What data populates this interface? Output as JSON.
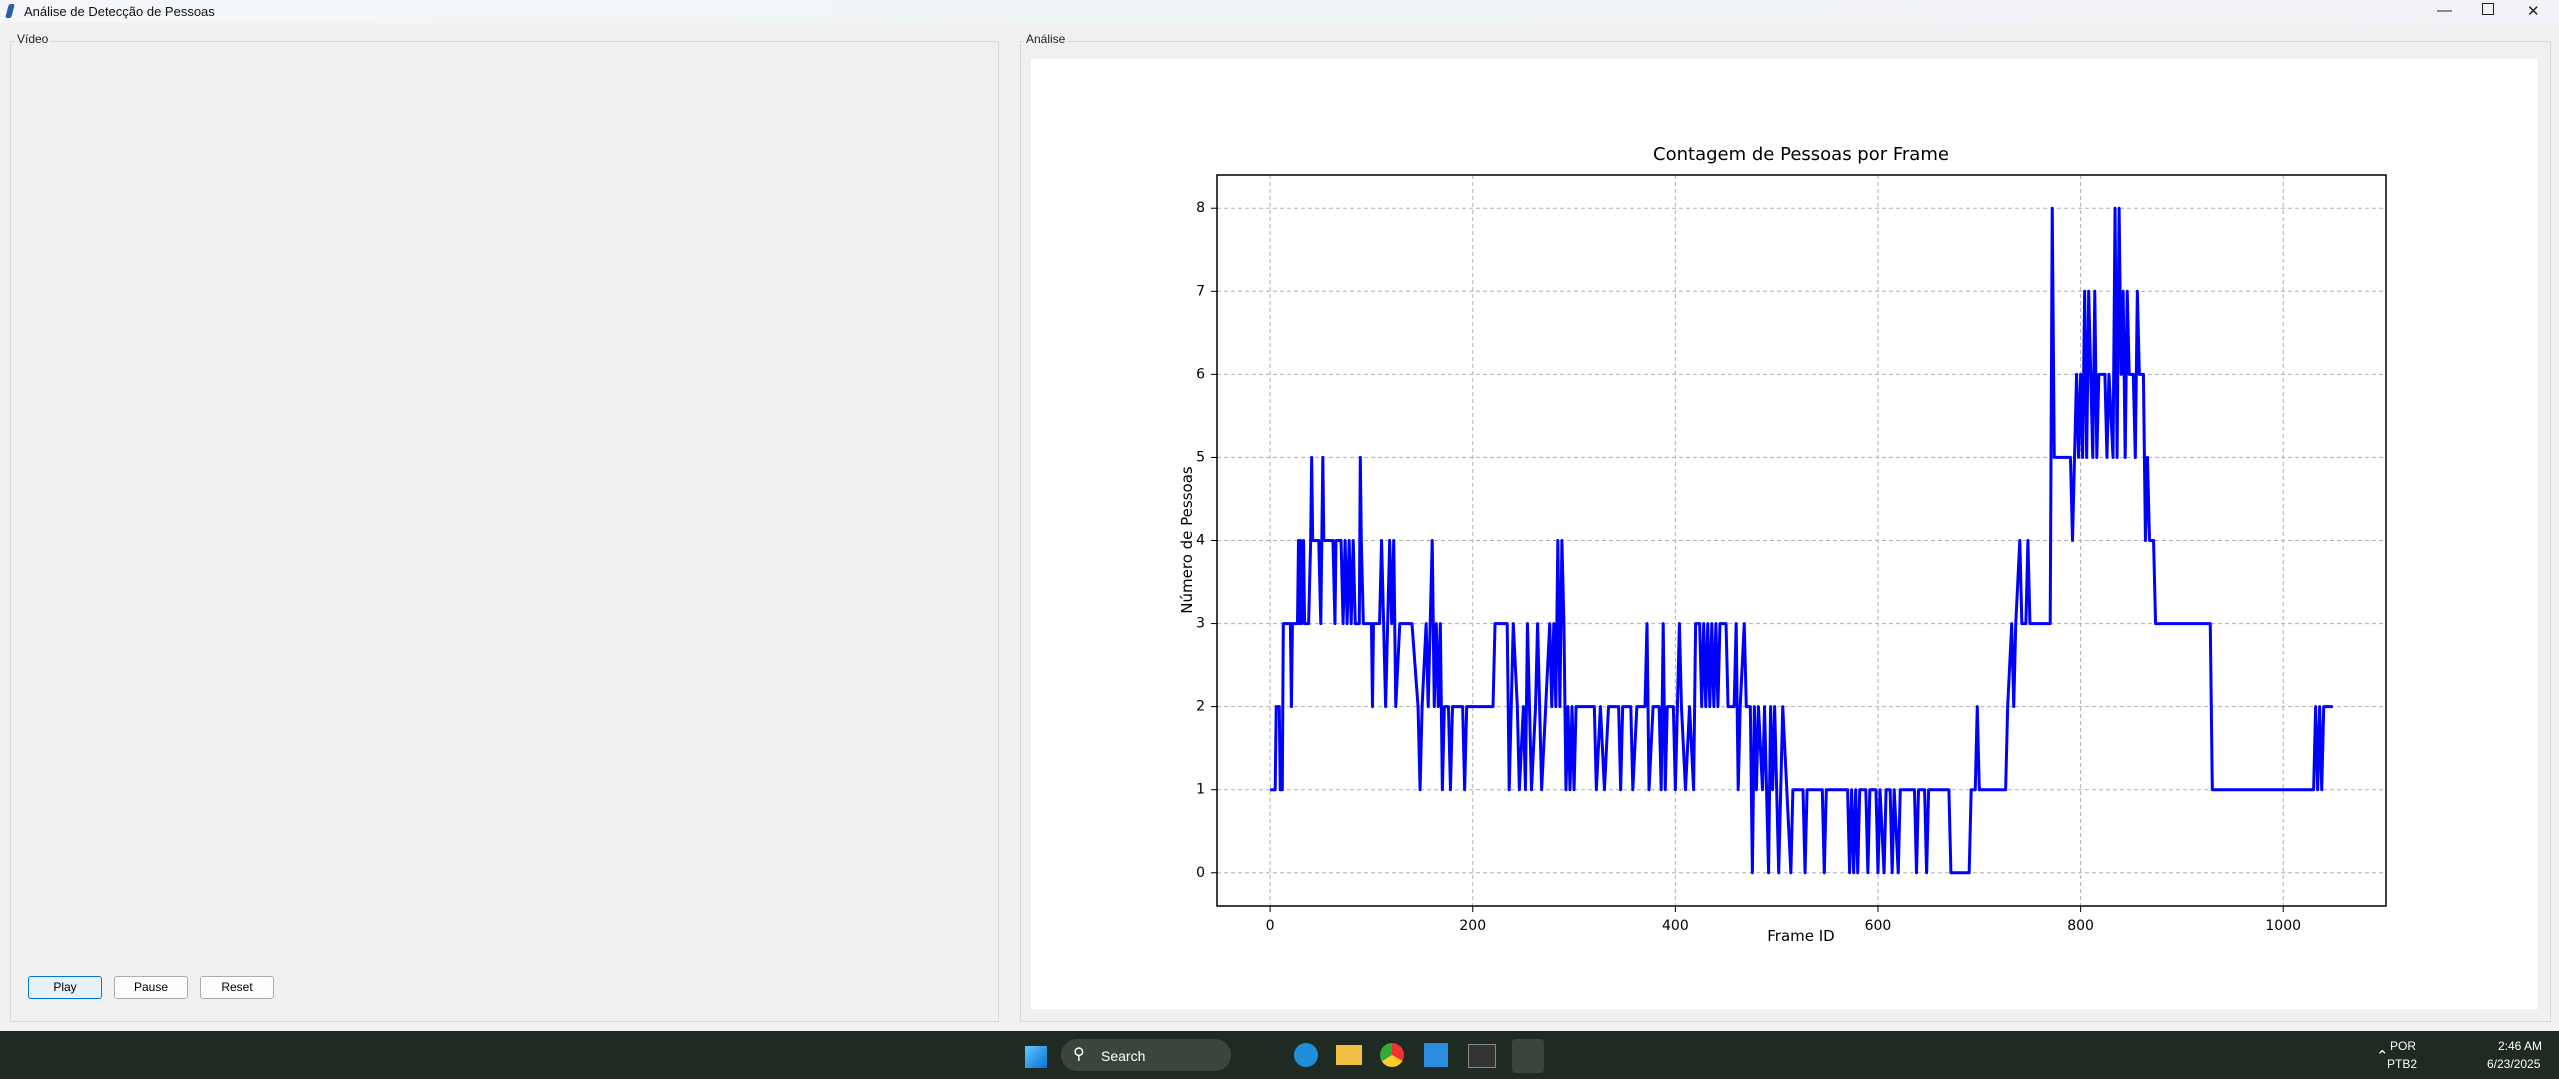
{
  "window": {
    "title": "Análise de Detecção de Pessoas"
  },
  "video_panel": {
    "label": "Vídeo",
    "buttons": [
      "Play",
      "Pause",
      "Reset"
    ]
  },
  "analysis_panel": {
    "label": "Análise"
  },
  "chart_data": {
    "type": "line",
    "title": "Contagem de Pessoas por Frame",
    "x_label": "Frame ID",
    "y_label": "Número de Pessoas",
    "color": "#0000ff",
    "grid": true,
    "xlim": [
      -52.45,
      1101.45
    ],
    "ylim": [
      -0.4,
      8.4
    ],
    "xticks": [
      0,
      200,
      400,
      600,
      800,
      1000
    ],
    "yticks": [
      0,
      1,
      2,
      3,
      4,
      5,
      6,
      7,
      8
    ],
    "x": [
      0,
      5,
      6,
      9,
      10,
      12,
      13,
      20,
      21,
      22,
      27,
      28,
      29,
      30,
      31,
      33,
      34,
      38,
      40,
      41,
      42,
      48,
      50,
      52,
      53,
      62,
      64,
      65,
      70,
      72,
      74,
      76,
      78,
      80,
      82,
      84,
      88,
      89,
      90,
      92,
      100,
      101,
      102,
      108,
      110,
      112,
      114,
      116,
      118,
      120,
      122,
      124,
      128,
      140,
      146,
      148,
      150,
      154,
      156,
      158,
      160,
      162,
      164,
      166,
      168,
      170,
      172,
      176,
      178,
      180,
      190,
      192,
      194,
      220,
      222,
      234,
      236,
      238,
      240,
      244,
      246,
      250,
      252,
      254,
      256,
      258,
      262,
      264,
      266,
      268,
      272,
      276,
      278,
      280,
      282,
      284,
      286,
      288,
      290,
      292,
      294,
      296,
      298,
      300,
      302,
      320,
      322,
      326,
      330,
      334,
      344,
      346,
      348,
      356,
      358,
      362,
      370,
      372,
      374,
      378,
      384,
      386,
      388,
      390,
      392,
      398,
      400,
      402,
      404,
      406,
      410,
      414,
      418,
      420,
      424,
      426,
      428,
      430,
      432,
      434,
      436,
      438,
      440,
      442,
      444,
      450,
      452,
      458,
      460,
      462,
      464,
      468,
      470,
      474,
      476,
      478,
      480,
      482,
      486,
      488,
      492,
      494,
      496,
      498,
      502,
      504,
      506,
      510,
      514,
      516,
      526,
      528,
      530,
      545,
      547,
      549,
      570,
      572,
      574,
      576,
      578,
      580,
      582,
      588,
      590,
      592,
      598,
      600,
      602,
      606,
      608,
      612,
      614,
      616,
      620,
      622,
      636,
      638,
      640,
      646,
      648,
      650,
      670,
      672,
      690,
      692,
      696,
      698,
      700,
      726,
      728,
      732,
      734,
      736,
      740,
      742,
      746,
      748,
      750,
      770,
      772,
      774,
      790,
      792,
      794,
      796,
      798,
      800,
      802,
      804,
      806,
      808,
      810,
      812,
      814,
      816,
      818,
      824,
      826,
      828,
      832,
      834,
      836,
      838,
      840,
      842,
      844,
      846,
      848,
      852,
      854,
      856,
      858,
      862,
      864,
      866,
      868,
      872,
      874,
      928,
      930,
      1030,
      1032,
      1034,
      1036,
      1038,
      1040,
      1049
    ],
    "values": [
      1,
      1,
      2,
      2,
      1,
      1,
      3,
      3,
      2,
      3,
      3,
      4,
      3,
      4,
      3,
      4,
      3,
      3,
      4,
      5,
      4,
      4,
      3,
      5,
      4,
      4,
      3,
      4,
      4,
      3,
      4,
      3,
      4,
      3,
      4,
      3,
      3,
      5,
      4,
      3,
      3,
      2,
      3,
      3,
      4,
      3,
      2,
      3,
      4,
      3,
      4,
      2,
      3,
      3,
      2,
      1,
      2,
      3,
      2,
      3,
      4,
      2,
      3,
      2,
      3,
      1,
      2,
      2,
      1,
      2,
      2,
      1,
      2,
      2,
      3,
      3,
      1,
      2,
      3,
      2,
      1,
      2,
      1,
      3,
      2,
      1,
      2,
      3,
      2,
      1,
      2,
      3,
      2,
      3,
      2,
      4,
      2,
      4,
      3,
      1,
      2,
      1,
      2,
      1,
      2,
      2,
      1,
      2,
      1,
      2,
      2,
      1,
      2,
      2,
      1,
      2,
      2,
      3,
      1,
      2,
      2,
      1,
      3,
      1,
      2,
      2,
      1,
      2,
      3,
      2,
      1,
      2,
      1,
      3,
      3,
      2,
      3,
      2,
      3,
      2,
      3,
      2,
      3,
      2,
      3,
      3,
      2,
      2,
      3,
      1,
      2,
      3,
      2,
      2,
      0,
      2,
      1,
      2,
      1,
      2,
      0,
      2,
      1,
      2,
      0,
      1,
      2,
      1,
      0,
      1,
      1,
      0,
      1,
      1,
      0,
      1,
      1,
      0,
      1,
      0,
      1,
      0,
      1,
      1,
      0,
      1,
      1,
      0,
      1,
      0,
      1,
      1,
      0,
      1,
      0,
      1,
      1,
      0,
      1,
      1,
      0,
      1,
      1,
      0,
      0,
      1,
      1,
      2,
      1,
      1,
      2,
      3,
      2,
      3,
      4,
      3,
      3,
      4,
      3,
      3,
      8,
      5,
      5,
      4,
      5,
      6,
      5,
      6,
      5,
      7,
      5,
      7,
      6,
      5,
      7,
      5,
      6,
      6,
      5,
      6,
      5,
      8,
      5,
      8,
      6,
      7,
      5,
      7,
      6,
      6,
      5,
      7,
      6,
      6,
      4,
      5,
      4,
      4,
      3,
      3,
      1,
      1,
      2,
      1,
      2,
      1,
      2,
      2
    ]
  },
  "taskbar": {
    "search": "Search",
    "language": "POR",
    "keyboard": "PTB2",
    "time": "2:46 AM",
    "date": "6/23/2025"
  }
}
